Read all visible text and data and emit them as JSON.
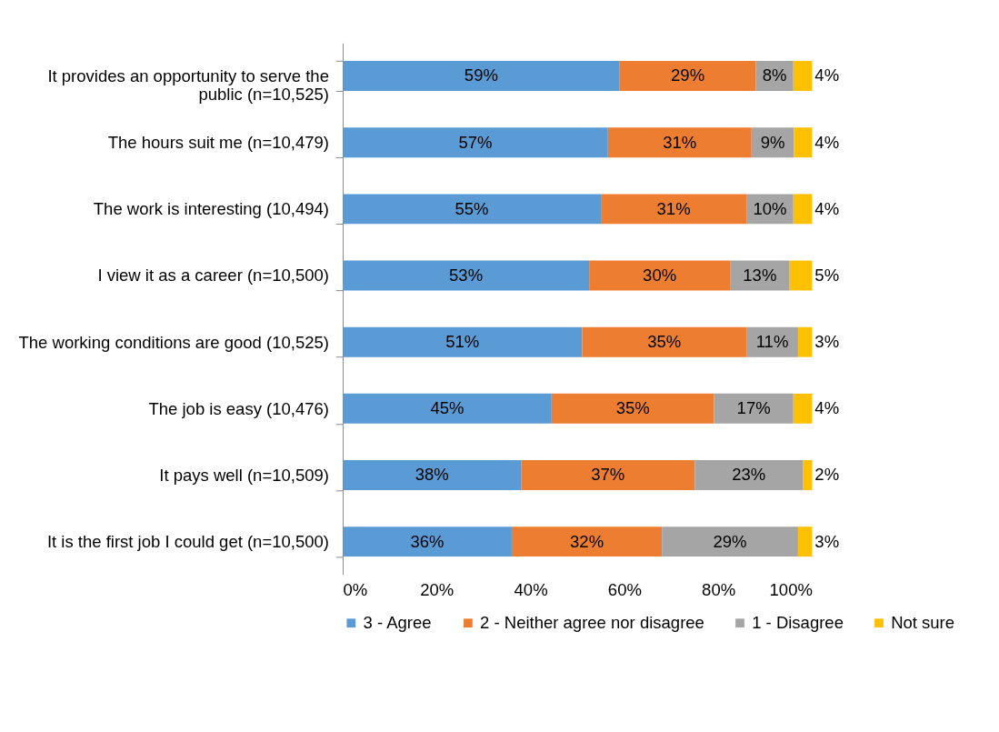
{
  "chart_data": {
    "type": "bar",
    "orientation": "horizontal",
    "stacked": true,
    "categories": [
      "It provides an opportunity to serve the public (n=10,525)",
      "The hours suit me (n=10,479)",
      "The work is interesting (10,494)",
      "I view it as a career (n=10,500)",
      "The working conditions are good (10,525)",
      "The job is easy (10,476)",
      "It pays well (n=10,509)",
      "It is the first job I could get (n=10,500)"
    ],
    "series": [
      {
        "name": "3 - Agree",
        "color": "#5b9bd5",
        "values": [
          59,
          56.5,
          55,
          52.5,
          51,
          44.5,
          38,
          36
        ],
        "value_labels": [
          "59%",
          "57%",
          "55%",
          "53%",
          "51%",
          "45%",
          "38%",
          "36%"
        ]
      },
      {
        "name": "2 - Neither agree nor disagree",
        "color": "#ed7d31",
        "values": [
          29,
          30.6,
          31,
          30,
          35,
          34.6,
          37,
          32
        ],
        "value_labels": [
          "29%",
          "31%",
          "31%",
          "30%",
          "35%",
          "35%",
          "37%",
          "32%"
        ]
      },
      {
        "name": "1 - Disagree",
        "color": "#a5a5a5",
        "values": [
          8,
          9,
          10,
          12.7,
          11,
          16.9,
          23,
          29
        ],
        "value_labels": [
          "8%",
          "9%",
          "10%",
          "13%",
          "11%",
          "17%",
          "23%",
          "29%"
        ]
      },
      {
        "name": "Not sure",
        "color": "#ffc000",
        "values": [
          4,
          3.9,
          4,
          4.8,
          3,
          4,
          2,
          3
        ],
        "value_labels": [
          "4%",
          "4%",
          "4%",
          "5%",
          "3%",
          "4%",
          "2%",
          "3%"
        ]
      }
    ],
    "xlim": [
      0,
      100
    ],
    "xticks": [
      {
        "value": 0,
        "label": "0%"
      },
      {
        "value": 20,
        "label": "20%"
      },
      {
        "value": 40,
        "label": "40%"
      },
      {
        "value": 60,
        "label": "60%"
      },
      {
        "value": 80,
        "label": "80%"
      },
      {
        "value": 100,
        "label": "100%"
      }
    ],
    "grid": false,
    "legend": "bottom"
  }
}
